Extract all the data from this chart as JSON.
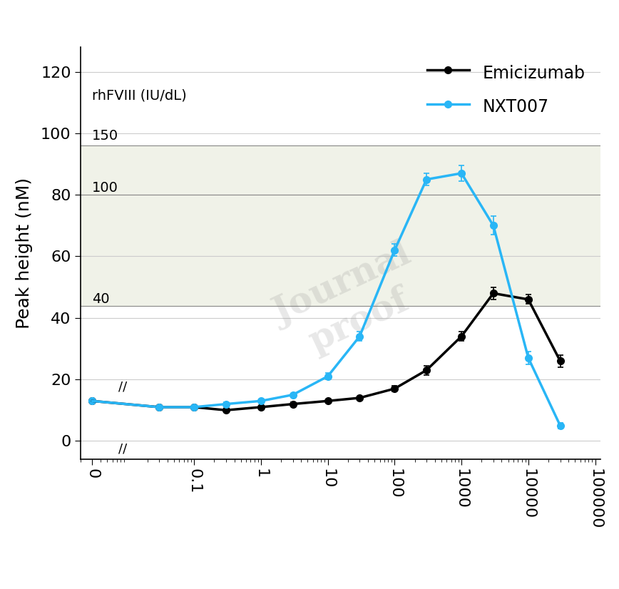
{
  "emicizumab_x": [
    0.003,
    0.03,
    0.1,
    0.3,
    1,
    3,
    10,
    30,
    100,
    300,
    1000,
    3000,
    10000,
    30000
  ],
  "emicizumab_y": [
    13,
    11,
    11,
    10,
    11,
    12,
    13,
    14,
    17,
    23,
    34,
    48,
    46,
    26
  ],
  "emicizumab_yerr": [
    0.5,
    0.5,
    0.5,
    0.5,
    0.5,
    0.5,
    0.5,
    0.5,
    1.0,
    1.5,
    1.5,
    2.0,
    1.5,
    2.0
  ],
  "nxt007_x": [
    0.003,
    0.03,
    0.1,
    0.3,
    1,
    3,
    10,
    30,
    100,
    300,
    1000,
    3000,
    10000,
    30000
  ],
  "nxt007_y": [
    13,
    11,
    11,
    12,
    13,
    15,
    21,
    34,
    62,
    85,
    87,
    70,
    27,
    5
  ],
  "nxt007_yerr": [
    0.5,
    0.5,
    0.5,
    0.5,
    0.5,
    0.5,
    1.0,
    1.5,
    2.0,
    2.0,
    2.5,
    3.0,
    2.0,
    1.0
  ],
  "emicizumab_color": "#000000",
  "nxt007_color": "#29B6F6",
  "shaded_region_color": "#F0F2E8",
  "shaded_ymin": 44,
  "shaded_ymax": 96,
  "ylabel": "Peak height (nM)",
  "yticks": [
    0,
    20,
    40,
    60,
    80,
    100,
    120
  ],
  "ylim": [
    -6,
    128
  ],
  "rhfviii_label": "rhFVIII (IU/dL)",
  "rhfviii_levels": [
    [
      "150",
      96
    ],
    [
      "100",
      80
    ],
    [
      "40",
      44
    ]
  ],
  "legend_emicizumab": "Emicizumab",
  "legend_nxt007": "NXT007",
  "xtick_positions": [
    0.003,
    0.1,
    1,
    10,
    100,
    1000,
    10000,
    100000
  ],
  "xtick_labels": [
    "0",
    "0.1",
    "1",
    "10",
    "100",
    "1000",
    "10000",
    "100000"
  ],
  "xlim_log_min": 0.002,
  "xlim_log_max": 120000
}
